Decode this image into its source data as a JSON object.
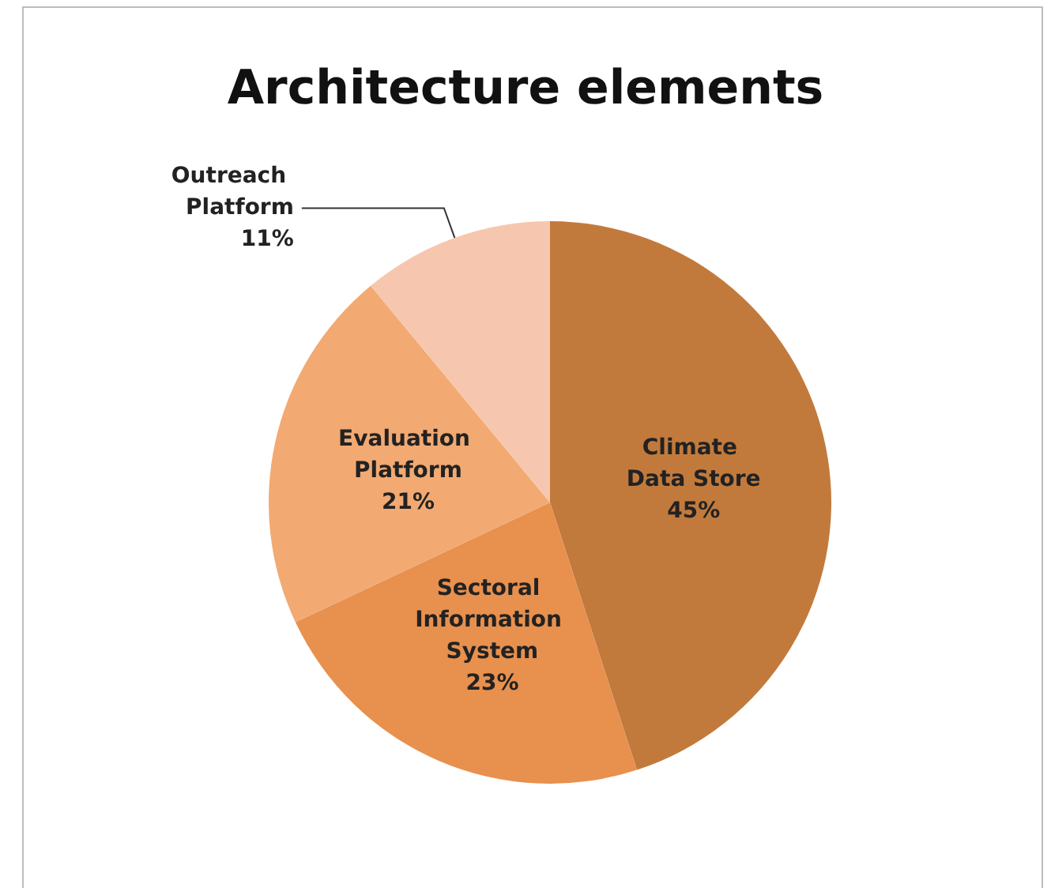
{
  "chart_data": {
    "type": "pie",
    "title": "Architecture elements",
    "categories": [
      "Climate Data Store",
      "Sectoral Information System",
      "Evaluation Platform",
      "Outreach Platform"
    ],
    "values": [
      45,
      23,
      21,
      11
    ],
    "value_labels": [
      "45%",
      "23%",
      "21%",
      "11%"
    ],
    "colors": [
      "#c27a3c",
      "#e8904e",
      "#f2a972",
      "#f6c7ae"
    ],
    "legend": false
  }
}
